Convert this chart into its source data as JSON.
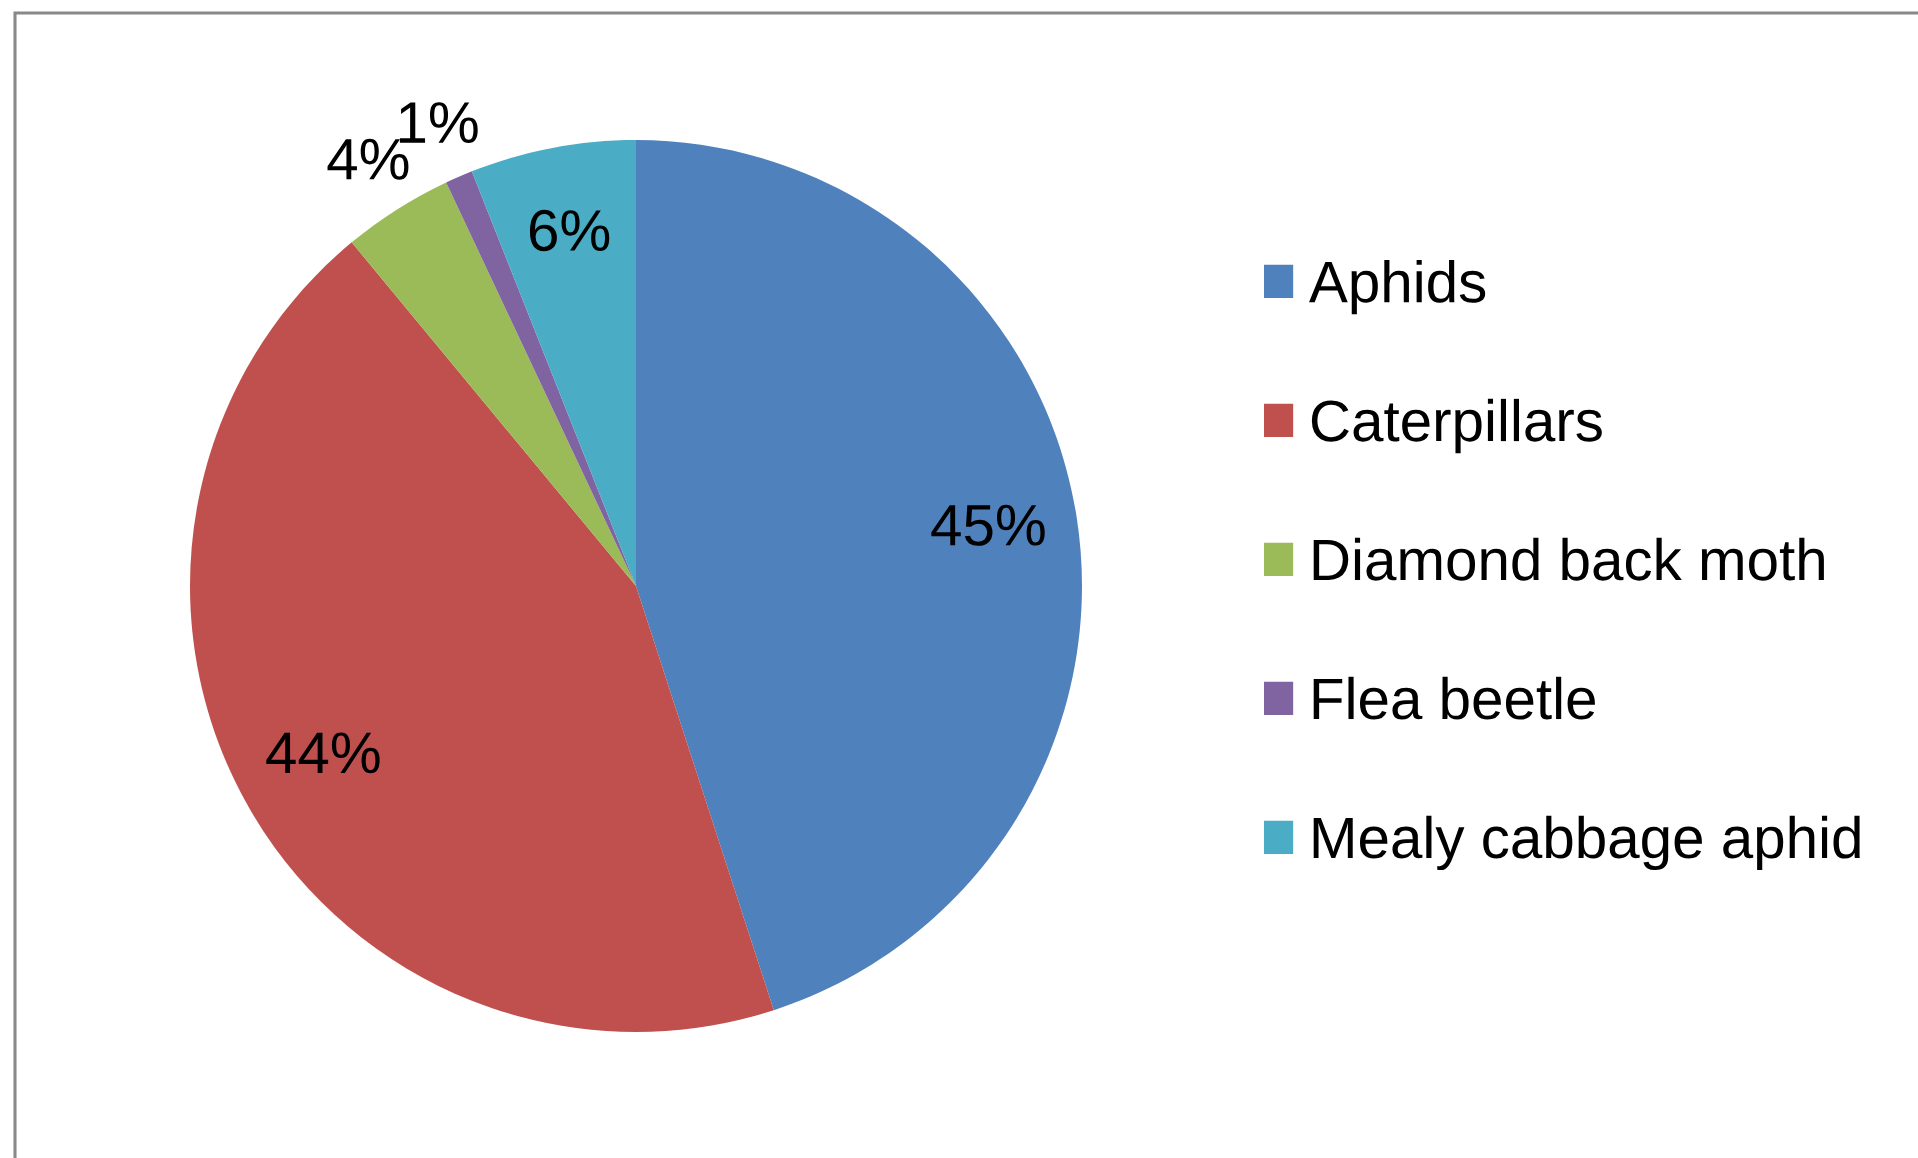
{
  "chart_data": {
    "type": "pie",
    "categories": [
      "Aphids",
      "Caterpillars",
      "Diamond back moth",
      "Flea beetle",
      "Mealy cabbage aphid"
    ],
    "values": [
      45,
      44,
      4,
      1,
      6
    ],
    "colors": [
      "#4f81bd",
      "#c0504d",
      "#9bbb59",
      "#8064a2",
      "#4bacc6"
    ],
    "value_labels": [
      "45%",
      "44%",
      "4%",
      "1%",
      "6%"
    ],
    "legend": "right"
  }
}
